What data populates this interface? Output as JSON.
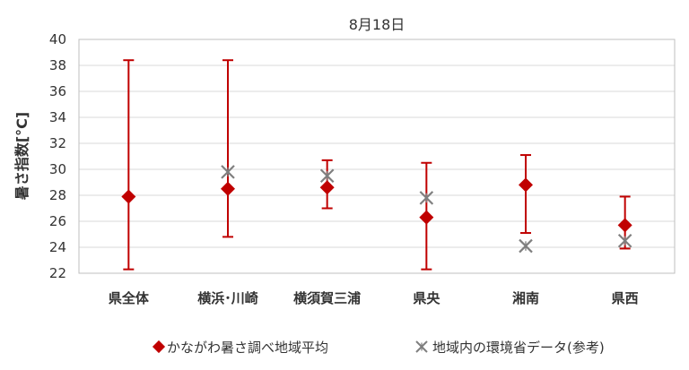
{
  "chart_data": {
    "type": "scatter",
    "title": "8月18日",
    "ylabel": "暑さ指数[°C]",
    "xlabel": "",
    "ylim": [
      22,
      40
    ],
    "y_tick_step": 2,
    "grid": true,
    "legend_position": "bottom",
    "categories": [
      "県全体",
      "横浜･川崎",
      "横須賀三浦",
      "県央",
      "湘南",
      "県西"
    ],
    "series": [
      {
        "name": "かながわ暑さ調べ地域平均",
        "marker": "diamond",
        "color": "#c00000",
        "values": [
          27.9,
          28.5,
          28.6,
          26.3,
          28.8,
          25.7
        ],
        "error_min": [
          22.3,
          24.8,
          27.0,
          22.3,
          25.1,
          23.9
        ],
        "error_max": [
          38.4,
          38.4,
          30.7,
          30.5,
          31.1,
          27.9
        ]
      },
      {
        "name": "地域内の環境省データ(参考)",
        "marker": "asterisk",
        "color": "#7f7f7f",
        "values": [
          null,
          29.8,
          29.5,
          27.8,
          24.1,
          24.5
        ]
      }
    ]
  }
}
